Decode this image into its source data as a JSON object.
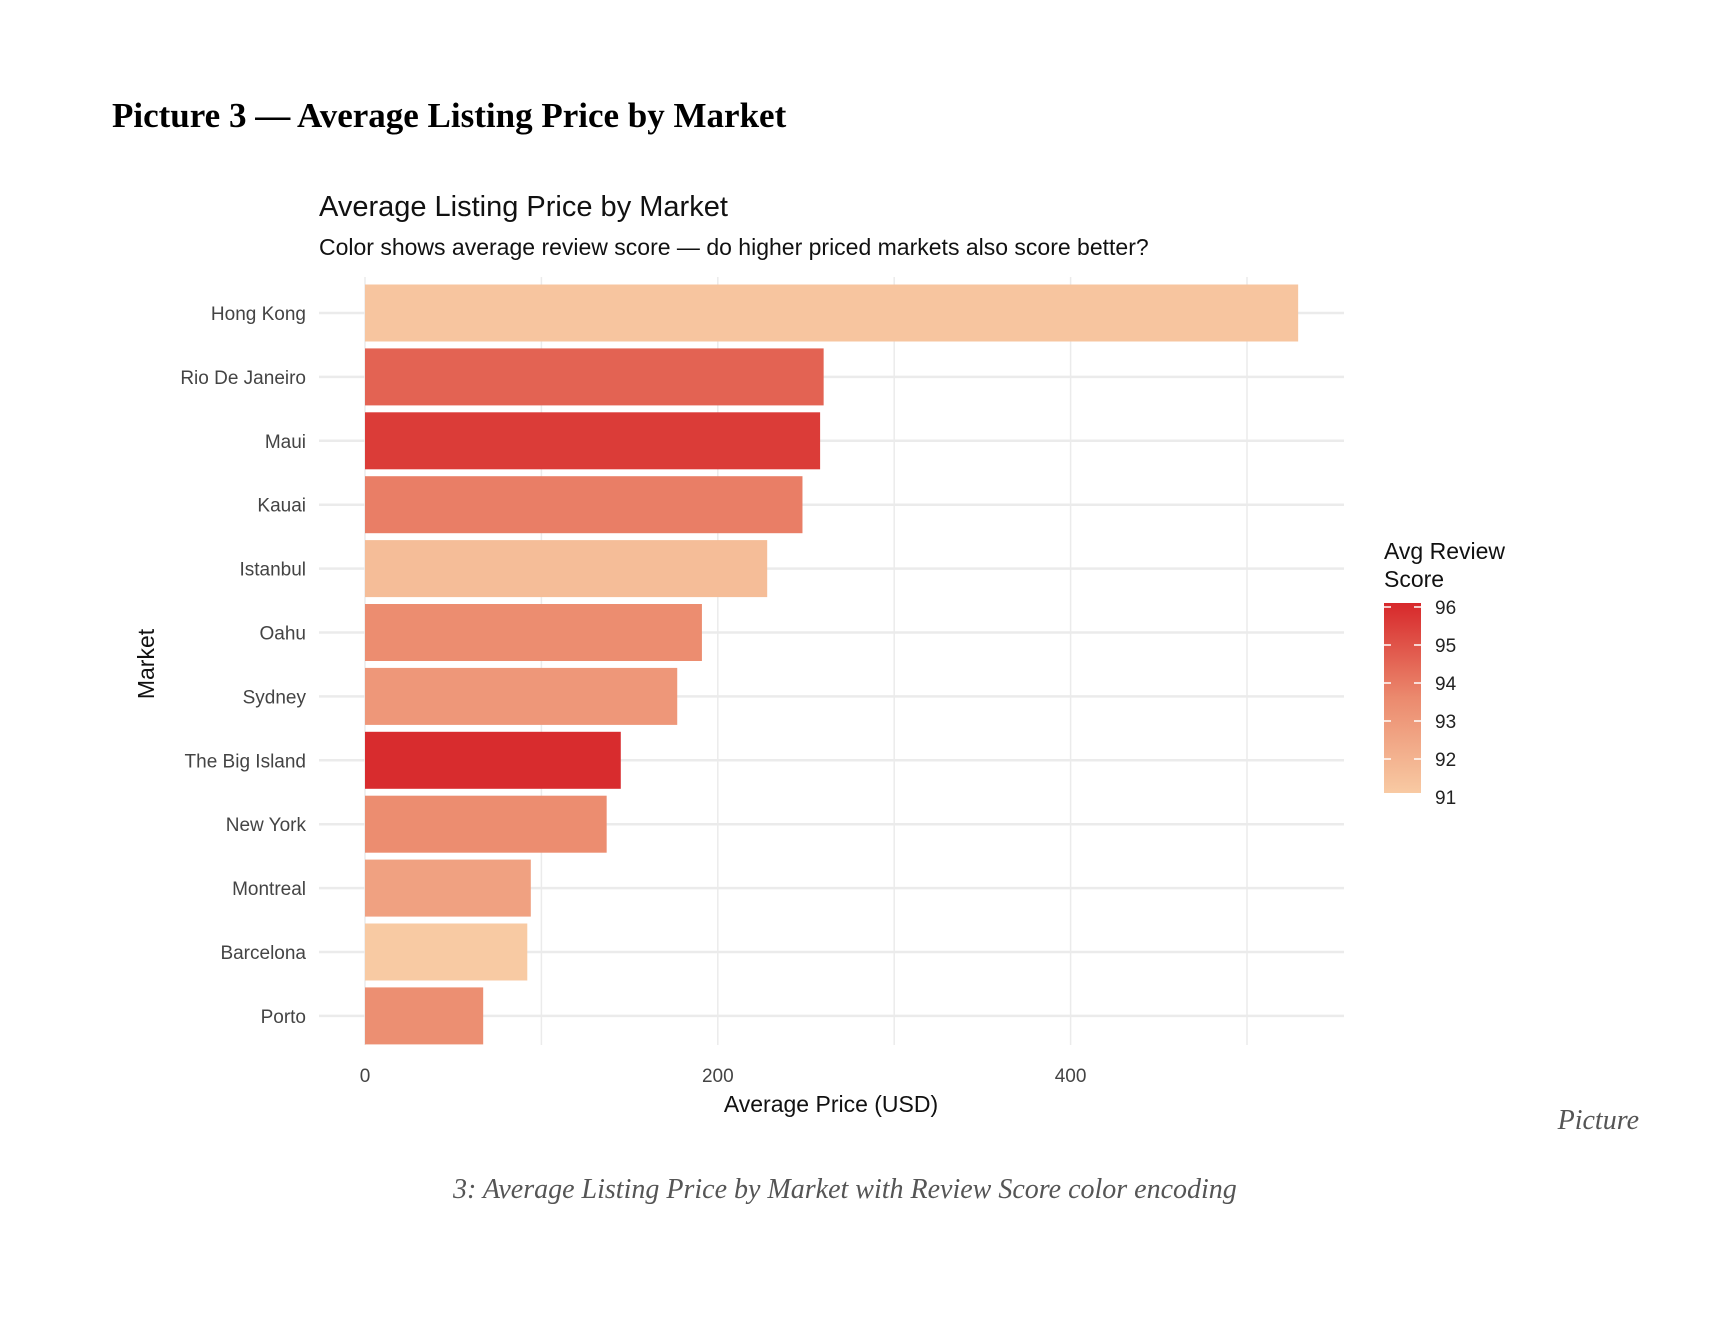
{
  "document": {
    "heading": "Picture 3 — Average Listing Price by Market",
    "caption_part1": "Picture",
    "caption_part2": "3: Average Listing Price by Market with Review Score color encoding"
  },
  "chart_data": {
    "type": "bar",
    "orientation": "horizontal",
    "title": "Average Listing Price by Market",
    "subtitle": "Color shows average review score — do higher priced markets also score better?",
    "xlabel": "Average Price (USD)",
    "ylabel": "Market",
    "xlim": [
      0,
      555
    ],
    "x_ticks": [
      0,
      200,
      400
    ],
    "grid": true,
    "categories": [
      "Hong Kong",
      "Rio De Janeiro",
      "Maui",
      "Kauai",
      "Istanbul",
      "Oahu",
      "Sydney",
      "The Big Island",
      "New York",
      "Montreal",
      "Barcelona",
      "Porto"
    ],
    "values": [
      529,
      260,
      258,
      248,
      228,
      191,
      177,
      145,
      137,
      94,
      92,
      67
    ],
    "color_values": [
      91.2,
      94.5,
      95.5,
      93.8,
      91.5,
      93.4,
      93.0,
      95.9,
      93.4,
      92.6,
      91.0,
      93.3
    ],
    "legend": {
      "title_line1": "Avg Review",
      "title_line2": "Score",
      "position": "right",
      "ticks": [
        96,
        95,
        94,
        93,
        92,
        91
      ],
      "range": [
        91,
        96
      ],
      "color_low": "#f8caa3",
      "color_mid": "#eb8a6e",
      "color_high": "#d7282b"
    }
  }
}
